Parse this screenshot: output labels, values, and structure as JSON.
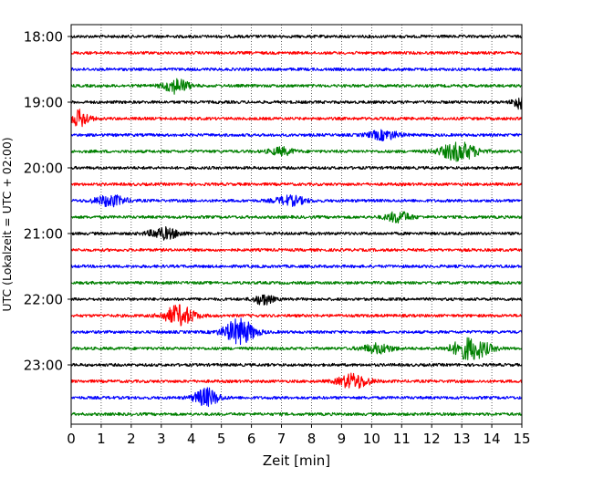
{
  "chart_data": {
    "type": "line",
    "title": "",
    "xlabel": "Zeit  [min]",
    "ylabel": "UTC (Lokalzeit = UTC + 02:00)",
    "xlim": [
      0,
      15
    ],
    "x_ticks": [
      0,
      1,
      2,
      3,
      4,
      5,
      6,
      7,
      8,
      9,
      10,
      11,
      12,
      13,
      14,
      15
    ],
    "y_tick_labels": [
      "18:00",
      "19:00",
      "20:00",
      "21:00",
      "22:00",
      "23:00"
    ],
    "traces_per_hour": 4,
    "grid": "vertical dotted at each minute",
    "colors": [
      "#000000",
      "#ff0000",
      "#0000ff",
      "#008000"
    ],
    "traces": [
      {
        "start": "18:00",
        "color": "#000000",
        "events": []
      },
      {
        "start": "18:15",
        "color": "#ff0000",
        "events": []
      },
      {
        "start": "18:30",
        "color": "#0000ff",
        "events": []
      },
      {
        "start": "18:45",
        "color": "#008000",
        "events": [
          {
            "t": 3.5,
            "amp": 8,
            "dur": 0.4
          }
        ]
      },
      {
        "start": "19:00",
        "color": "#000000",
        "events": [
          {
            "t": 14.9,
            "amp": 7,
            "dur": 0.2
          }
        ]
      },
      {
        "start": "19:15",
        "color": "#ff0000",
        "events": [
          {
            "t": 0.3,
            "amp": 9,
            "dur": 0.3
          }
        ]
      },
      {
        "start": "19:30",
        "color": "#0000ff",
        "events": [
          {
            "t": 10.4,
            "amp": 5,
            "dur": 0.5
          }
        ]
      },
      {
        "start": "19:45",
        "color": "#008000",
        "events": [
          {
            "t": 7.0,
            "amp": 4,
            "dur": 0.4
          },
          {
            "t": 12.9,
            "amp": 10,
            "dur": 0.6
          }
        ]
      },
      {
        "start": "20:00",
        "color": "#000000",
        "events": []
      },
      {
        "start": "20:15",
        "color": "#ff0000",
        "events": []
      },
      {
        "start": "20:30",
        "color": "#0000ff",
        "events": [
          {
            "t": 1.3,
            "amp": 6,
            "dur": 0.5
          },
          {
            "t": 7.3,
            "amp": 5,
            "dur": 0.5
          }
        ]
      },
      {
        "start": "20:45",
        "color": "#008000",
        "events": [
          {
            "t": 10.9,
            "amp": 6,
            "dur": 0.4
          }
        ]
      },
      {
        "start": "21:00",
        "color": "#000000",
        "events": [
          {
            "t": 3.1,
            "amp": 6,
            "dur": 0.5
          }
        ]
      },
      {
        "start": "21:15",
        "color": "#ff0000",
        "events": []
      },
      {
        "start": "21:30",
        "color": "#0000ff",
        "events": []
      },
      {
        "start": "21:45",
        "color": "#008000",
        "events": []
      },
      {
        "start": "22:00",
        "color": "#000000",
        "events": [
          {
            "t": 6.4,
            "amp": 6,
            "dur": 0.3
          }
        ]
      },
      {
        "start": "22:15",
        "color": "#ff0000",
        "events": [
          {
            "t": 3.6,
            "amp": 11,
            "dur": 0.5
          }
        ]
      },
      {
        "start": "22:30",
        "color": "#0000ff",
        "events": [
          {
            "t": 5.6,
            "amp": 14,
            "dur": 0.5
          }
        ]
      },
      {
        "start": "22:45",
        "color": "#008000",
        "events": [
          {
            "t": 10.2,
            "amp": 5,
            "dur": 0.5
          },
          {
            "t": 13.3,
            "amp": 12,
            "dur": 0.6
          }
        ]
      },
      {
        "start": "23:00",
        "color": "#000000",
        "events": []
      },
      {
        "start": "23:15",
        "color": "#ff0000",
        "events": [
          {
            "t": 9.4,
            "amp": 8,
            "dur": 0.5
          }
        ]
      },
      {
        "start": "23:30",
        "color": "#0000ff",
        "events": [
          {
            "t": 4.5,
            "amp": 10,
            "dur": 0.4
          }
        ]
      },
      {
        "start": "23:45",
        "color": "#008000",
        "events": []
      }
    ]
  }
}
